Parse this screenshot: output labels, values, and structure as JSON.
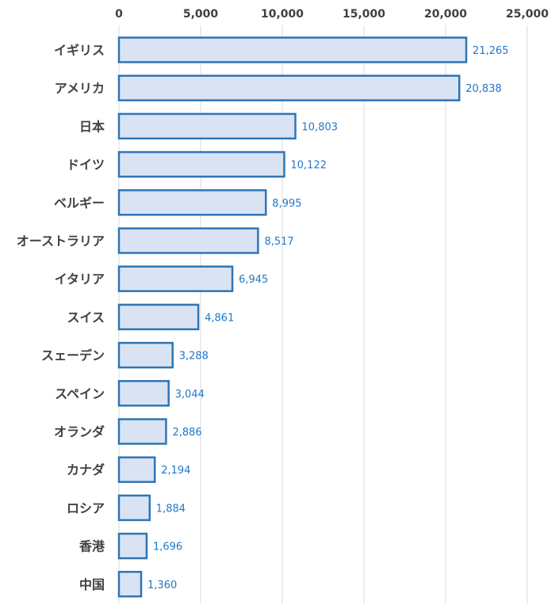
{
  "chart_data": {
    "type": "bar",
    "orientation": "horizontal",
    "categories": [
      "イギリス",
      "アメリカ",
      "日本",
      "ドイツ",
      "ベルギー",
      "オーストラリア",
      "イタリア",
      "スイス",
      "スェーデン",
      "スペイン",
      "オランダ",
      "カナダ",
      "ロシア",
      "香港",
      "中国"
    ],
    "values": [
      21265,
      20838,
      10803,
      10122,
      8995,
      8517,
      6945,
      4861,
      3288,
      3044,
      2886,
      2194,
      1884,
      1696,
      1360
    ],
    "value_labels": [
      "21,265",
      "20,838",
      "10,803",
      "10,122",
      "8,995",
      "8,517",
      "6,945",
      "4,861",
      "3,288",
      "3,044",
      "2,886",
      "2,194",
      "1,884",
      "1,696",
      "1,360"
    ],
    "x_ticks": [
      0,
      5000,
      10000,
      15000,
      20000,
      25000
    ],
    "x_tick_labels": [
      "0",
      "5,000",
      "10,000",
      "15,000",
      "20,000",
      "25,000"
    ],
    "xlim": [
      0,
      25000
    ],
    "axis_position": "top",
    "grid": true,
    "colors": {
      "bar_fill": "#dae3f3",
      "bar_stroke": "#2e75b6",
      "value_label": "#1f78c8",
      "gridline": "#d9d9d9",
      "text": "#404040"
    }
  }
}
